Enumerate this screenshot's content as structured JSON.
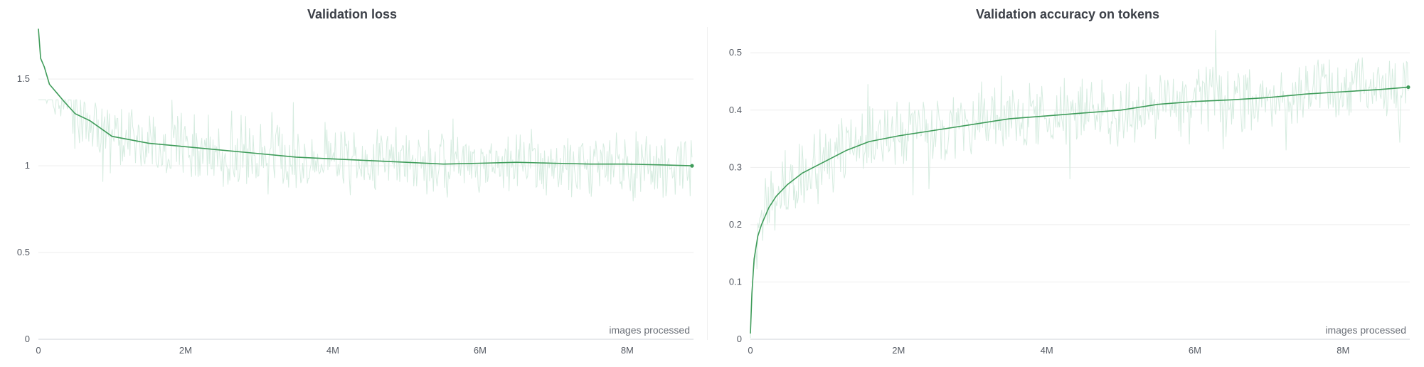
{
  "colors": {
    "line": "#3f9c5a",
    "noise": "#d6ece0",
    "grid": "#eeeeee",
    "axis": "#cfd3d8",
    "text": "#555a63"
  },
  "chart_data": [
    {
      "type": "line",
      "title": "Validation loss",
      "xlabel": "images processed",
      "ylabel": "",
      "xlim": [
        0,
        8900000
      ],
      "ylim": [
        0,
        1.8
      ],
      "xticks": [
        0,
        2000000,
        4000000,
        6000000,
        8000000
      ],
      "xtick_labels": [
        "0",
        "2M",
        "4M",
        "6M",
        "8M"
      ],
      "yticks": [
        0,
        0.5,
        1,
        1.5
      ],
      "ytick_labels": [
        "0",
        "0.5",
        "1",
        "1.5"
      ],
      "grid": true,
      "legend": "none",
      "series": [
        {
          "x": [
            0,
            30000,
            80000,
            150000,
            250000,
            350000,
            500000,
            700000,
            1000000,
            1500000,
            2000000,
            2500000,
            3000000,
            3500000,
            4000000,
            4500000,
            5000000,
            5500000,
            6000000,
            6500000,
            7000000,
            7500000,
            8000000,
            8500000,
            8880000
          ],
          "values": [
            1.79,
            1.62,
            1.57,
            1.47,
            1.42,
            1.37,
            1.3,
            1.26,
            1.17,
            1.13,
            1.11,
            1.09,
            1.07,
            1.05,
            1.04,
            1.03,
            1.02,
            1.01,
            1.015,
            1.02,
            1.015,
            1.01,
            1.01,
            1.005,
            1.0
          ]
        }
      ],
      "raw_noise_range": [
        0.72,
        1.38
      ]
    },
    {
      "type": "line",
      "title": "Validation accuracy on tokens",
      "xlabel": "images processed",
      "ylabel": "",
      "xlim": [
        0,
        8900000
      ],
      "ylim": [
        0,
        0.545
      ],
      "xticks": [
        0,
        2000000,
        4000000,
        6000000,
        8000000
      ],
      "xtick_labels": [
        "0",
        "2M",
        "4M",
        "6M",
        "8M"
      ],
      "yticks": [
        0,
        0.1,
        0.2,
        0.3,
        0.4,
        0.5
      ],
      "ytick_labels": [
        "0",
        "0.1",
        "0.2",
        "0.3",
        "0.4",
        "0.5"
      ],
      "grid": true,
      "legend": "none",
      "series": [
        {
          "x": [
            0,
            20000,
            50000,
            100000,
            150000,
            250000,
            350000,
            500000,
            700000,
            1000000,
            1300000,
            1600000,
            2000000,
            2500000,
            3000000,
            3500000,
            4000000,
            4500000,
            5000000,
            5500000,
            6000000,
            6500000,
            7000000,
            7500000,
            8000000,
            8500000,
            8880000
          ],
          "values": [
            0.01,
            0.08,
            0.14,
            0.18,
            0.2,
            0.23,
            0.25,
            0.27,
            0.29,
            0.31,
            0.33,
            0.345,
            0.355,
            0.365,
            0.375,
            0.385,
            0.39,
            0.395,
            0.4,
            0.41,
            0.415,
            0.418,
            0.422,
            0.428,
            0.432,
            0.436,
            0.44
          ]
        }
      ],
      "raw_noise_range": [
        0.25,
        0.54
      ]
    }
  ]
}
